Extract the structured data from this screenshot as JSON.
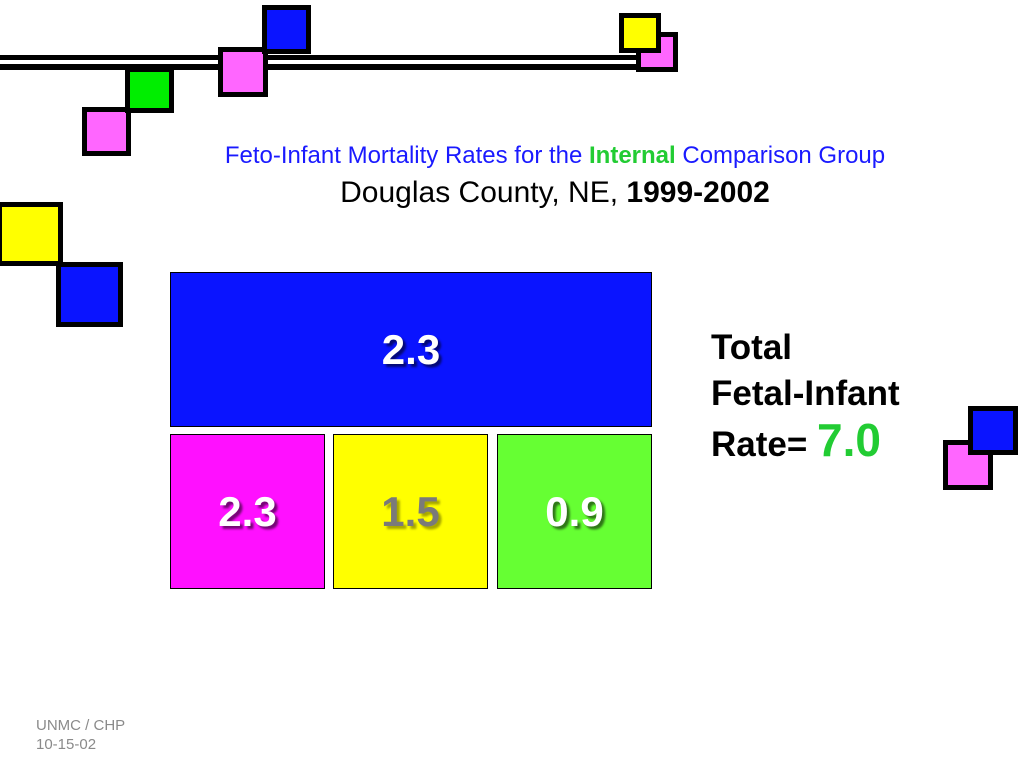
{
  "title": {
    "line1_prefix": "Feto-Infant Mortality Rates for the ",
    "line1_emphasis": "Internal",
    "line1_suffix": " Comparison Group",
    "line2_prefix": "Douglas County, NE, ",
    "line2_years": "1999-2002"
  },
  "tiles": {
    "top": "2.3",
    "bottom": [
      "2.3",
      "1.5",
      "0.9"
    ]
  },
  "total": {
    "label_line1": "Total",
    "label_line2": "Fetal-Infant",
    "label_line3": "Rate=",
    "value": "7.0"
  },
  "footer": {
    "line1": "UNMC / CHP",
    "line2": "10-15-02"
  },
  "colors": {
    "title_blue": "#1a1aff",
    "emphasis_green": "#22cc33",
    "tile_blue": "#0a14ff",
    "tile_magenta": "#ff10ff",
    "tile_yellow": "#ffff00",
    "tile_green": "#66ff33",
    "square_pink": "#ff66ff",
    "square_green": "#00ee00",
    "square_yellow": "#ffff00",
    "square_blue": "#0a14ff"
  }
}
